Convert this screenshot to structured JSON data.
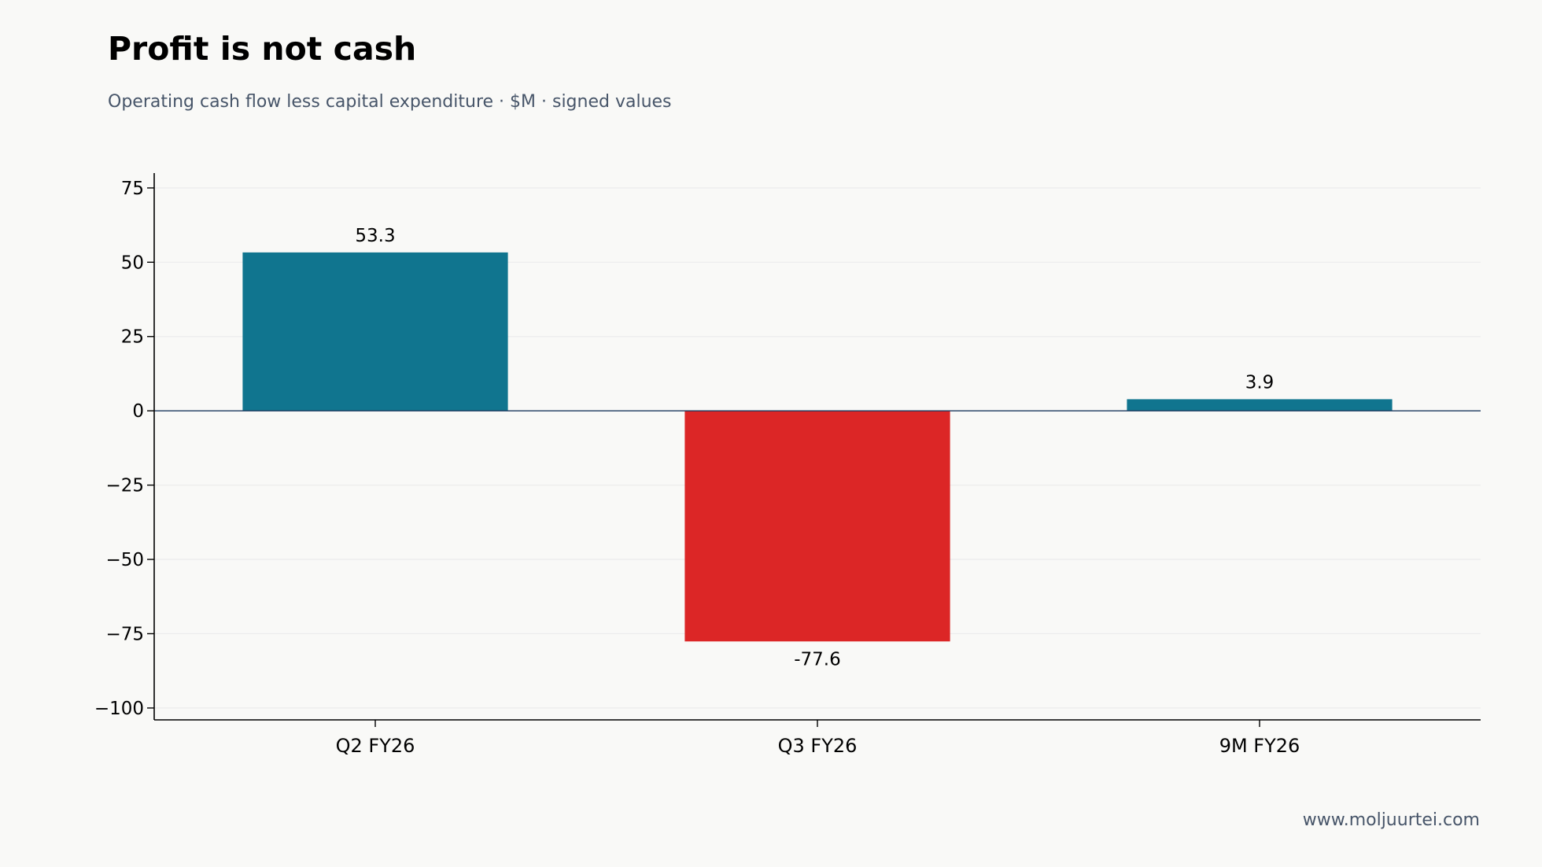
{
  "header": {
    "title": "Profit is not cash",
    "subtitle": "Operating cash flow less capital expenditure · $M · signed values"
  },
  "footer": {
    "source": "www.moljuurtei.com"
  },
  "colors": {
    "positive": "#10758f",
    "negative": "#dc2626",
    "grid": "#ececec",
    "axis": "#000000",
    "zero_line": "#1e3a5f"
  },
  "chart_data": {
    "type": "bar",
    "title": "",
    "xlabel": "",
    "ylabel": "",
    "categories": [
      "Q2 FY26",
      "Q3 FY26",
      "9M FY26"
    ],
    "values": [
      53.3,
      -77.6,
      3.9
    ],
    "data_labels": [
      "53.3",
      "-77.6",
      "3.9"
    ],
    "ylim": [
      -104,
      80
    ],
    "yticks": [
      75,
      50,
      25,
      0,
      -25,
      -50,
      -75,
      -100
    ],
    "ytick_labels": [
      "75",
      "50",
      "25",
      "0",
      "−25",
      "−50",
      "−75",
      "−100"
    ],
    "grid": "horizontal",
    "legend": "none"
  }
}
